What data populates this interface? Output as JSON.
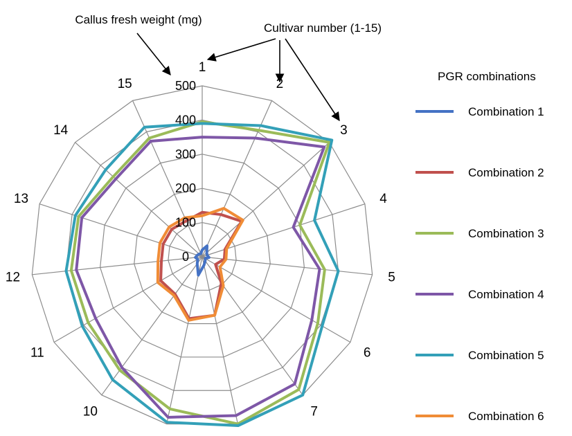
{
  "chart_data": {
    "type": "radar",
    "categories": [
      "1",
      "2",
      "3",
      "4",
      "5",
      "6",
      "7",
      "8",
      "9",
      "10",
      "11",
      "12",
      "13",
      "14",
      "15"
    ],
    "rlim": [
      0,
      500
    ],
    "rticks": [
      "0",
      "100",
      "200",
      "300",
      "400",
      "500"
    ],
    "grid": true,
    "legend": {
      "title": "PGR combinations",
      "position": "right"
    },
    "annotations": {
      "value_axis": "Callus fresh weight (mg)",
      "category_axis": "Cultivar number (1-15)"
    },
    "series": [
      {
        "name": "Combination 1",
        "color": "#4472C4",
        "values": [
          20,
          35,
          18,
          15,
          20,
          10,
          15,
          25,
          55,
          25,
          15,
          20,
          15,
          12,
          10
        ]
      },
      {
        "name": "Combination 2",
        "color": "#C0504D",
        "values": [
          130,
          135,
          155,
          70,
          65,
          45,
          95,
          175,
          185,
          135,
          140,
          120,
          120,
          120,
          115
        ]
      },
      {
        "name": "Combination 3",
        "color": "#9BBB59",
        "values": [
          395,
          405,
          500,
          300,
          360,
          390,
          480,
          500,
          455,
          410,
          385,
          385,
          380,
          350,
          380
        ]
      },
      {
        "name": "Combination 4",
        "color": "#7E57A7",
        "values": [
          350,
          380,
          480,
          280,
          345,
          370,
          460,
          475,
          480,
          400,
          360,
          370,
          370,
          340,
          370
        ]
      },
      {
        "name": "Combination 5",
        "color": "#33A0B8",
        "values": [
          390,
          420,
          510,
          345,
          400,
          405,
          500,
          505,
          495,
          445,
          405,
          400,
          390,
          380,
          415
        ]
      },
      {
        "name": "Combination 6",
        "color": "#F08C36",
        "values": [
          120,
          155,
          160,
          75,
          70,
          60,
          105,
          175,
          190,
          140,
          150,
          130,
          130,
          130,
          125
        ]
      }
    ]
  }
}
